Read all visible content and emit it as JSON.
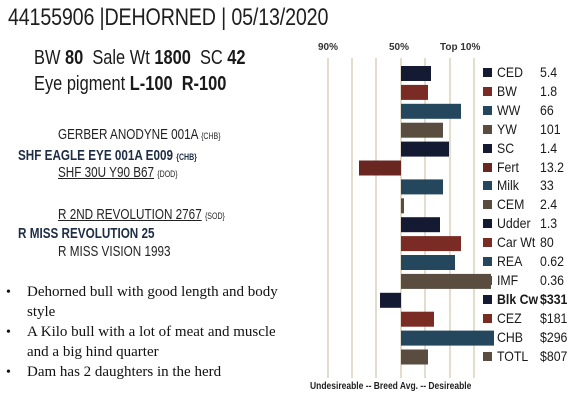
{
  "header": {
    "title": "44155906 |DEHORNED | 05/13/2020"
  },
  "stats": {
    "bw_label": "BW",
    "bw": "80",
    "salewt_label": "Sale Wt",
    "salewt": "1800",
    "sc_label": "SC",
    "sc": "42",
    "eye_label": "Eye pigment",
    "eye_left": "L-100",
    "eye_right": "R-100"
  },
  "pedigree": {
    "sire_sire": {
      "name": "GERBER ANODYNE 001A",
      "reg": "{CHB}"
    },
    "sire": {
      "name": "SHF EAGLE EYE 001A E009",
      "reg": "{CHB}"
    },
    "sire_dam": {
      "name": "SHF 30U Y90 B67",
      "reg": "{DOD}"
    },
    "dam_sire": {
      "name": "R 2ND REVOLUTION 2767",
      "reg": "{SOD}"
    },
    "dam": {
      "name": "R MISS REVOLUTION 25",
      "reg": ""
    },
    "dam_dam": {
      "name": "R MISS VISION 1993",
      "reg": ""
    }
  },
  "notes": [
    "Dehorned bull with good length and body style",
    "A Kilo bull with a lot of meat and muscle and a big hind quarter",
    "Dam has 2 daughters in the herd"
  ],
  "chart_data": {
    "type": "bar",
    "orientation": "horizontal",
    "scale_labels": [
      "90%",
      "50%",
      "Top 10%"
    ],
    "xlabel": "Undesireable -- Breed Avg. --  Desireable",
    "categories": [
      "CED",
      "BW",
      "WW",
      "YW",
      "SC",
      "Fert",
      "Milk",
      "CEM",
      "Udder",
      "Car Wt",
      "REA",
      "IMF",
      "Blk Cw",
      "CEZ",
      "CHB",
      "TOTL"
    ],
    "display_values": [
      "5.4",
      "1.8",
      "66",
      "101",
      "1.4",
      "13.2",
      "33",
      "2.4",
      "1.3",
      "80",
      "0.62",
      "0.36",
      "$331",
      "$181",
      "$296",
      "$807"
    ],
    "values": [
      0.1,
      0.09,
      0.2,
      0.14,
      0.16,
      -0.14,
      0.14,
      0.01,
      0.13,
      0.2,
      0.18,
      0.3,
      -0.07,
      0.11,
      0.31,
      0.09
    ],
    "value_note": "values are relative position from breed average (0) toward desirable (+) scale",
    "colors": [
      "#141a32",
      "#7a2b24",
      "#24475e",
      "#5a4d3f",
      "#141a32",
      "#6a2620",
      "#24475e",
      "#5a4d3f",
      "#141a32",
      "#7a2b24",
      "#24475e",
      "#5a4d3f",
      "#141a32",
      "#7a2b24",
      "#24475e",
      "#5a4d3f"
    ],
    "bold_rows": [
      12
    ]
  }
}
